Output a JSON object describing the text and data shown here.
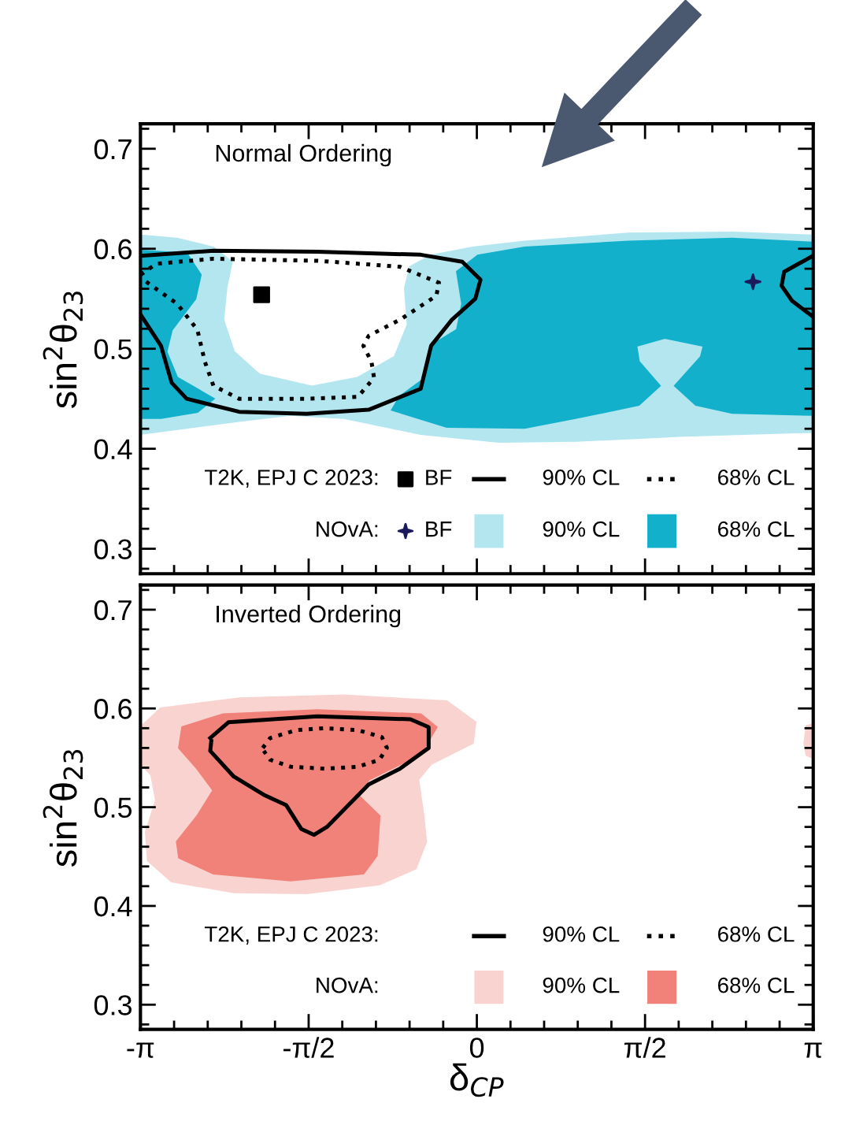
{
  "chart_data": [
    {
      "type": "area",
      "title": "Normal Ordering",
      "ylabel": "sin$^{2}$θ$_{23}$",
      "xlim": [
        -3.1416,
        3.1416
      ],
      "ylim": [
        0.275,
        0.725
      ],
      "xticks": [
        {
          "value": -3.1416,
          "label": null
        },
        {
          "value": -1.5708,
          "label": null
        },
        {
          "value": 0,
          "label": null
        },
        {
          "value": 1.5708,
          "label": null
        },
        {
          "value": 3.1416,
          "label": null
        }
      ],
      "yticks": [
        0.3,
        0.4,
        0.5,
        0.6,
        0.7
      ],
      "tick_labels": "y",
      "legend": "bottom",
      "annotations": [
        "T2K, EPJ C 2023:",
        "NOvA:"
      ],
      "series": [
        {
          "name": "BF",
          "type": "scatter",
          "marker": "square",
          "color": "#000000",
          "x": [
            -2.01
          ],
          "values": [
            0.554
          ]
        },
        {
          "name": "90% CL",
          "type": "line",
          "line_style": "solid",
          "color": "#000000",
          "x": [
            -3.14,
            -2.46,
            -1.49,
            -0.524,
            -0.136,
            0.034,
            -0.014,
            -0.233,
            -0.427,
            -0.524,
            -1.01,
            -1.59,
            -2.22,
            -2.71,
            -2.85,
            -2.95,
            -3.14
          ],
          "values": [
            0.593,
            0.598,
            0.597,
            0.594,
            0.587,
            0.569,
            0.55,
            0.529,
            0.503,
            0.46,
            0.439,
            0.435,
            0.437,
            0.45,
            0.466,
            0.503,
            0.534
          ]
        },
        {
          "type": "line",
          "line_style": "solid",
          "color": "#000000",
          "x": [
            3.14,
            2.87,
            2.846,
            2.943,
            3.14
          ],
          "values": [
            0.593,
            0.577,
            0.563,
            0.548,
            0.532
          ]
        },
        {
          "name": "68% CL",
          "type": "line",
          "line_style": "dotted",
          "color": "#000000",
          "x": [
            -3.14,
            -2.995,
            -2.46,
            -1.49,
            -0.718,
            -0.354,
            -0.378,
            -0.718,
            -1.01,
            -1.06,
            -0.984,
            -0.96,
            -1.11,
            -1.59,
            -2.22,
            -2.46,
            -2.54,
            -2.61,
            -2.8,
            -3.14
          ],
          "values": [
            0.574,
            0.585,
            0.59,
            0.588,
            0.582,
            0.566,
            0.553,
            0.529,
            0.513,
            0.503,
            0.487,
            0.471,
            0.452,
            0.45,
            0.45,
            0.463,
            0.487,
            0.519,
            0.545,
            0.571
          ]
        },
        {
          "name": "BF",
          "type": "scatter",
          "marker": "star",
          "color": "#1b1b5c",
          "x": [
            2.579
          ],
          "values": [
            0.567
          ]
        },
        {
          "name": "90% CL",
          "color": "#b4e6f0",
          "x": [
            -3.14,
            -2.8,
            -2.46,
            -2.29,
            -2.34,
            -2.37,
            -2.27,
            -2.03,
            -1.54,
            -1.11,
            -0.766,
            -0.645,
            -0.67,
            -0.62,
            -0.427,
            -0.039,
            0.446,
            1.415,
            2.385,
            3.14,
            3.14,
            1.9,
            0.93,
            0.204,
            -0.524,
            -1.25,
            -1.74,
            -2.22,
            -2.71,
            -3.14
          ],
          "values": [
            0.613,
            0.61,
            0.601,
            0.587,
            0.561,
            0.529,
            0.497,
            0.474,
            0.462,
            0.471,
            0.492,
            0.524,
            0.561,
            0.582,
            0.593,
            0.601,
            0.607,
            0.615,
            0.616,
            0.613,
            0.417,
            0.413,
            0.408,
            0.407,
            0.415,
            0.431,
            0.434,
            0.428,
            0.421,
            0.415
          ]
        },
        {
          "name": "68% CL",
          "color": "#13b0cb",
          "x": [
            -3.14,
            -2.71,
            -2.58,
            -2.63,
            -2.85,
            -2.9,
            -2.8,
            -2.46,
            -2.61,
            -2.95,
            -3.14
          ],
          "values": [
            0.598,
            0.595,
            0.574,
            0.55,
            0.519,
            0.497,
            0.471,
            0.45,
            0.437,
            0.431,
            0.431
          ]
        },
        {
          "color": "#13b0cb",
          "x": [
            -0.184,
            0.01,
            0.446,
            1.415,
            2.385,
            3.14,
            3.14,
            2.385,
            2.046,
            1.852,
            2.094,
            2.12,
            1.755,
            1.488,
            1.512,
            1.706,
            1.512,
            0.93,
            0.446,
            -0.281,
            -0.79,
            -0.718,
            -0.475,
            -0.427,
            -0.184,
            -0.136
          ],
          "values": [
            0.577,
            0.593,
            0.601,
            0.607,
            0.61,
            0.606,
            0.434,
            0.436,
            0.444,
            0.463,
            0.492,
            0.503,
            0.511,
            0.503,
            0.487,
            0.463,
            0.444,
            0.431,
            0.421,
            0.422,
            0.439,
            0.452,
            0.471,
            0.503,
            0.519,
            0.545
          ]
        }
      ]
    },
    {
      "type": "area",
      "title": "Inverted Ordering",
      "xlabel": "δ$_{CP}$",
      "ylabel": "sin$^{2}$θ$_{23}$",
      "xlim": [
        -3.1416,
        3.1416
      ],
      "ylim": [
        0.275,
        0.725
      ],
      "xticks": [
        {
          "value": -3.1416,
          "label": "-π"
        },
        {
          "value": -1.5708,
          "label": "-π/2"
        },
        0,
        {
          "value": 1.5708,
          "label": "π/2"
        },
        {
          "value": 3.1416,
          "label": "π"
        }
      ],
      "yticks": [
        0.3,
        0.4,
        0.5,
        0.6,
        0.7
      ],
      "legend": "bottom",
      "annotations": [
        "T2K, EPJ C 2023:",
        "NOvA:"
      ],
      "series": [
        {
          "name": "90% CL",
          "type": "line",
          "line_style": "solid",
          "color": "#000000",
          "x": [
            -2.49,
            -2.32,
            -1.49,
            -0.62,
            -0.45,
            -0.45,
            -0.718,
            -1.01,
            -1.2,
            -1.4,
            -1.52,
            -1.64,
            -1.78,
            -1.98,
            -2.27,
            -2.49,
            -2.48
          ],
          "values": [
            0.57,
            0.586,
            0.592,
            0.589,
            0.581,
            0.56,
            0.539,
            0.523,
            0.502,
            0.48,
            0.472,
            0.478,
            0.502,
            0.512,
            0.531,
            0.557,
            0.567
          ]
        },
        {
          "name": "68% CL",
          "type": "line",
          "line_style": "dotted",
          "color": "#000000",
          "x": [
            -2.0,
            -1.93,
            -1.69,
            -1.42,
            -1.11,
            -0.887,
            -0.84,
            -0.91,
            -1.11,
            -1.42,
            -1.74,
            -1.93,
            -1.99
          ],
          "values": [
            0.56,
            0.57,
            0.578,
            0.58,
            0.578,
            0.571,
            0.56,
            0.548,
            0.541,
            0.539,
            0.541,
            0.548,
            0.557
          ]
        },
        {
          "name": "90% CL",
          "color": "#f9d3cf",
          "x": [
            -3.14,
            -2.95,
            -2.22,
            -1.25,
            -0.281,
            -0.014,
            -0.039,
            -0.427,
            -0.548,
            -0.5,
            -0.475,
            -0.572,
            -0.91,
            -1.59,
            -2.27,
            -2.85,
            -3.07,
            -3.09,
            -2.995,
            -3.04,
            -3.14
          ],
          "values": [
            0.581,
            0.6,
            0.61,
            0.613,
            0.607,
            0.586,
            0.565,
            0.544,
            0.528,
            0.491,
            0.465,
            0.438,
            0.422,
            0.413,
            0.414,
            0.425,
            0.446,
            0.475,
            0.507,
            0.533,
            0.544
          ]
        },
        {
          "color": "#f9d3cf",
          "x": [
            3.14,
            3.08,
            3.06,
            3.08,
            3.14
          ],
          "values": [
            0.584,
            0.582,
            0.565,
            0.553,
            0.55
          ]
        },
        {
          "name": "68% CL",
          "color": "#f08279",
          "x": [
            -2.75,
            -2.37,
            -1.49,
            -0.524,
            -0.378,
            -0.524,
            -1.01,
            -1.11,
            -0.91,
            -0.936,
            -1.06,
            -1.74,
            -2.46,
            -2.78,
            -2.8,
            -2.61,
            -2.46,
            -2.61,
            -2.78
          ],
          "values": [
            0.581,
            0.594,
            0.598,
            0.594,
            0.581,
            0.554,
            0.528,
            0.512,
            0.491,
            0.451,
            0.433,
            0.426,
            0.433,
            0.449,
            0.465,
            0.491,
            0.517,
            0.539,
            0.56
          ]
        }
      ]
    }
  ]
}
